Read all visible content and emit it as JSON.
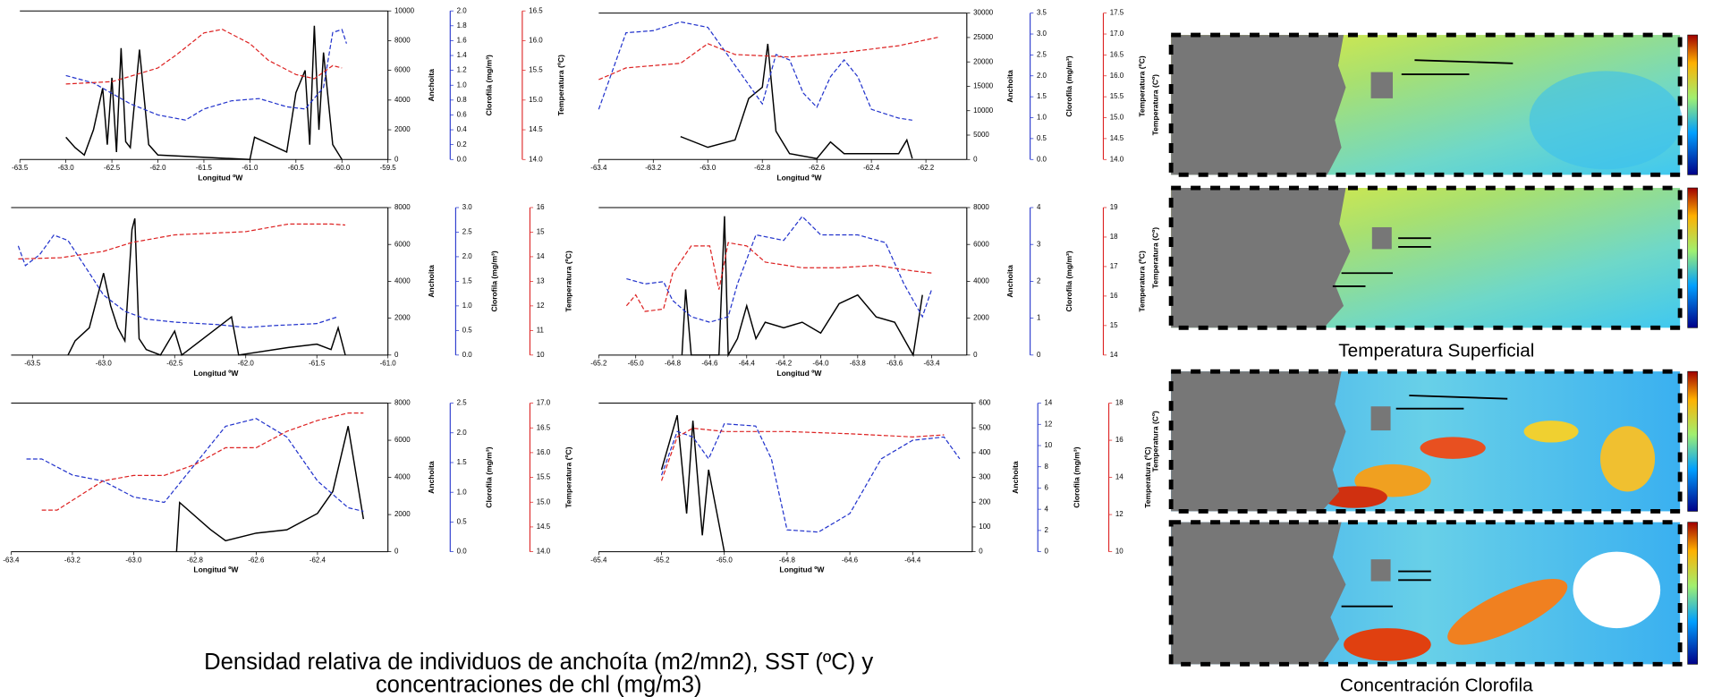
{
  "chart_data": [
    {
      "type": "line",
      "xlabel": "Longitud ºW",
      "ylabel": "Anchoita",
      "y2label": "Clorofila (mg/m³)",
      "y3label": "Temperatura (ºC)",
      "xlim": [
        -63.5,
        -59.5
      ],
      "xticks": [
        -63.5,
        {
          "value": -63,
          "label": "-63.0"
        },
        -62.5,
        {
          "value": -62,
          "label": "-62.0"
        },
        -61.5,
        {
          "value": -61,
          "label": "-61.0"
        },
        -60.5,
        {
          "value": -60,
          "label": "-60.0"
        },
        -59.5
      ],
      "ylim": [
        0,
        10000
      ],
      "yticks": [
        0,
        2000,
        4000,
        6000,
        8000,
        10000
      ],
      "y2lim": [
        0,
        2
      ],
      "y2ticks": [
        {
          "value": 0,
          "label": "0.0"
        },
        0.2,
        0.4,
        0.6,
        0.8,
        {
          "value": 1,
          "label": "1.0"
        },
        1.2,
        1.4,
        1.6,
        1.8,
        {
          "value": 2,
          "label": "2.0"
        }
      ],
      "y3lim": [
        14,
        16.5
      ],
      "y3ticks": [
        {
          "value": 14,
          "label": "14.0"
        },
        14.5,
        {
          "value": 15,
          "label": "15.0"
        },
        15.5,
        {
          "value": 16,
          "label": "16.0"
        },
        16.5
      ],
      "series": [
        {
          "color": "#000000",
          "dashed": false,
          "x": [
            -63.0,
            -62.9,
            -62.8,
            -62.7,
            -62.6,
            -62.55,
            -62.5,
            -62.45,
            -62.4,
            -62.35,
            -62.3,
            -62.2,
            -62.1,
            -62.0,
            -61.0,
            -60.95,
            -60.6,
            -60.5,
            -60.4,
            -60.35,
            -60.3,
            -60.25,
            -60.2,
            -60.1,
            -60.0
          ],
          "values": [
            1500,
            800,
            300,
            2000,
            4800,
            1000,
            5500,
            500,
            7500,
            1200,
            800,
            7400,
            1000,
            300,
            0,
            1500,
            500,
            4500,
            6000,
            1000,
            9000,
            2000,
            7200,
            1000,
            0
          ]
        },
        {
          "color": "#2233cc",
          "dashed": true,
          "axis": "y2",
          "x": [
            -63.0,
            -62.7,
            -62.3,
            -62.0,
            -61.7,
            -61.5,
            -61.2,
            -60.9,
            -60.6,
            -60.4,
            -60.2,
            -60.1,
            -60.0,
            -59.95
          ],
          "values": [
            1.13,
            1.03,
            0.75,
            0.6,
            0.53,
            0.68,
            0.79,
            0.82,
            0.71,
            0.68,
            0.97,
            1.71,
            1.75,
            1.56
          ]
        },
        {
          "color": "#dd2222",
          "dashed": true,
          "axis": "y3",
          "x": [
            -63.0,
            -62.5,
            -62.3,
            -62.0,
            -61.8,
            -61.5,
            -61.3,
            -61.0,
            -60.8,
            -60.5,
            -60.3,
            -60.1,
            -60.0
          ],
          "values": [
            15.27,
            15.31,
            15.4,
            15.54,
            15.76,
            16.13,
            16.19,
            15.95,
            15.67,
            15.43,
            15.36,
            15.58,
            15.54
          ]
        }
      ]
    },
    {
      "type": "line",
      "xlabel": "Longitud ºW",
      "ylabel": "Anchoita",
      "y2label": "Clorofila (mg/m³)",
      "y3label": "Temperatura (ºC)",
      "xlim": [
        -63.4,
        -62.05
      ],
      "xticks": [
        -63.4,
        -63.2,
        {
          "value": -63,
          "label": "-63.0"
        },
        -62.8,
        -62.6,
        -62.4,
        -62.2
      ],
      "ylim": [
        0,
        30000
      ],
      "yticks": [
        0,
        5000,
        10000,
        15000,
        20000,
        25000,
        30000
      ],
      "y2lim": [
        0,
        3.5
      ],
      "y2ticks": [
        {
          "value": 0,
          "label": "0.0"
        },
        0.5,
        {
          "value": 1,
          "label": "1.0"
        },
        1.5,
        {
          "value": 2,
          "label": "2.0"
        },
        2.5,
        {
          "value": 3,
          "label": "3.0"
        },
        3.5
      ],
      "y3lim": [
        14,
        17.5
      ],
      "y3ticks": [
        {
          "value": 14,
          "label": "14.0"
        },
        14.5,
        {
          "value": 15,
          "label": "15.0"
        },
        15.5,
        {
          "value": 16,
          "label": "16.0"
        },
        16.5,
        {
          "value": 17,
          "label": "17.0"
        },
        17.5
      ],
      "series": [
        {
          "color": "#000000",
          "dashed": false,
          "x": [
            -63.1,
            -63.0,
            -62.9,
            -62.85,
            -62.8,
            -62.78,
            -62.75,
            -62.7,
            -62.6,
            -62.55,
            -62.5,
            -62.3,
            -62.27,
            -62.25
          ],
          "values": [
            4700,
            2500,
            4000,
            12500,
            14800,
            23700,
            5800,
            1200,
            200,
            3600,
            1200,
            1200,
            4000,
            200
          ]
        },
        {
          "color": "#2233cc",
          "dashed": true,
          "axis": "y2",
          "x": [
            -63.4,
            -63.3,
            -63.2,
            -63.1,
            -63.0,
            -62.9,
            -62.8,
            -62.75,
            -62.7,
            -62.65,
            -62.6,
            -62.55,
            -62.5,
            -62.45,
            -62.4,
            -62.3,
            -62.25
          ],
          "values": [
            1.2,
            3.03,
            3.08,
            3.29,
            3.16,
            2.25,
            1.33,
            2.51,
            2.38,
            1.59,
            1.25,
            1.98,
            2.38,
            1.98,
            1.2,
            0.99,
            0.94
          ]
        },
        {
          "color": "#dd2222",
          "dashed": true,
          "axis": "y3",
          "x": [
            -63.4,
            -63.3,
            -63.1,
            -63.0,
            -62.9,
            -62.7,
            -62.5,
            -62.3,
            -62.15
          ],
          "values": [
            15.91,
            16.19,
            16.3,
            16.77,
            16.51,
            16.45,
            16.56,
            16.72,
            16.93
          ]
        }
      ]
    },
    {
      "type": "line",
      "xlabel": "Longitud ºW",
      "ylabel": "Anchoita",
      "y2label": "Clorofila (mg/m³)",
      "y3label": "Temperatura (ºC)",
      "xlim": [
        -63.65,
        -61.0
      ],
      "xticks": [
        -63.5,
        {
          "value": -63,
          "label": "-63.0"
        },
        -62.5,
        {
          "value": -62,
          "label": "-62.0"
        },
        -61.5,
        {
          "value": -61,
          "label": "-61.0"
        }
      ],
      "ylim": [
        0,
        8000
      ],
      "yticks": [
        0,
        2000,
        4000,
        6000,
        8000
      ],
      "y2lim": [
        0,
        3
      ],
      "y2ticks": [
        {
          "value": 0,
          "label": "0.0"
        },
        0.5,
        {
          "value": 1,
          "label": "1.0"
        },
        1.5,
        {
          "value": 2,
          "label": "2.0"
        },
        2.5,
        {
          "value": 3,
          "label": "3.0"
        }
      ],
      "y3lim": [
        10,
        16
      ],
      "y3ticks": [
        10,
        11,
        12,
        13,
        14,
        15,
        16
      ],
      "series": [
        {
          "color": "#000000",
          "dashed": false,
          "x": [
            -63.25,
            -63.2,
            -63.1,
            -63.0,
            -62.95,
            -62.9,
            -62.85,
            -62.8,
            -62.78,
            -62.75,
            -62.7,
            -62.6,
            -62.5,
            -62.45,
            -62.1,
            -62.05,
            -61.7,
            -61.5,
            -61.4,
            -61.35,
            -61.3
          ],
          "values": [
            0,
            770,
            1480,
            4440,
            2670,
            1480,
            770,
            6810,
            7410,
            890,
            300,
            0,
            1300,
            0,
            2070,
            0,
            410,
            590,
            300,
            1480,
            0
          ]
        },
        {
          "color": "#2233cc",
          "dashed": true,
          "axis": "y2",
          "x": [
            -63.6,
            -63.55,
            -63.45,
            -63.35,
            -63.25,
            -63.1,
            -63.0,
            -62.85,
            -62.7,
            -62.5,
            -62.2,
            -62.0,
            -61.8,
            -61.5,
            -61.35
          ],
          "values": [
            2.22,
            1.82,
            2.04,
            2.44,
            2.33,
            1.67,
            1.22,
            0.89,
            0.73,
            0.67,
            0.62,
            0.56,
            0.6,
            0.64,
            0.78
          ]
        },
        {
          "color": "#dd2222",
          "dashed": true,
          "axis": "y3",
          "x": [
            -63.6,
            -63.3,
            -63.0,
            -62.8,
            -62.5,
            -62.0,
            -61.7,
            -61.4,
            -61.3
          ],
          "values": [
            13.91,
            13.96,
            14.22,
            14.58,
            14.89,
            15.02,
            15.33,
            15.33,
            15.29
          ]
        }
      ]
    },
    {
      "type": "line",
      "xlabel": "Longitud ºW",
      "ylabel": "Anchoita",
      "y2label": "Clorofila (mg/m³)",
      "y3label": "Temperatura (ºC)",
      "xlim": [
        -65.2,
        -63.21
      ],
      "xticks": [
        -65.2,
        {
          "value": -65,
          "label": "-65.0"
        },
        -64.8,
        -64.6,
        -64.4,
        -64.2,
        {
          "value": -64,
          "label": "-64.0"
        },
        -63.8,
        -63.6,
        -63.4
      ],
      "ylim": [
        0,
        8000
      ],
      "yticks": [
        0,
        2000,
        4000,
        6000,
        8000
      ],
      "y2lim": [
        0,
        4
      ],
      "y2ticks": [
        0,
        1,
        2,
        3,
        4
      ],
      "y3lim": [
        14,
        19
      ],
      "y3ticks": [
        14,
        15,
        16,
        17,
        18,
        19
      ],
      "series": [
        {
          "color": "#000000",
          "dashed": false,
          "x": [
            -64.75,
            -64.73,
            -64.7,
            -64.55,
            -64.52,
            -64.5,
            -64.45,
            -64.4,
            -64.35,
            -64.3,
            -64.2,
            -64.1,
            -64.0,
            -63.9,
            -63.8,
            -63.7,
            -63.6,
            -63.5,
            -63.45
          ],
          "values": [
            0,
            3560,
            0,
            0,
            7530,
            0,
            890,
            2670,
            890,
            1780,
            1480,
            1780,
            1190,
            2790,
            3260,
            2070,
            1780,
            0,
            3260
          ]
        },
        {
          "color": "#2233cc",
          "dashed": true,
          "axis": "y2",
          "x": [
            -65.05,
            -64.95,
            -64.85,
            -64.8,
            -64.7,
            -64.6,
            -64.5,
            -64.45,
            -64.35,
            -64.2,
            -64.1,
            -64.0,
            -63.8,
            -63.65,
            -63.55,
            -63.45,
            -63.4
          ],
          "values": [
            2.07,
            1.93,
            1.99,
            1.48,
            1.04,
            0.89,
            1.04,
            1.93,
            3.26,
            3.11,
            3.76,
            3.26,
            3.26,
            3.05,
            1.93,
            1.04,
            1.78
          ]
        },
        {
          "color": "#dd2222",
          "dashed": true,
          "axis": "y3",
          "x": [
            -65.05,
            -65.0,
            -64.95,
            -64.85,
            -64.8,
            -64.7,
            -64.6,
            -64.55,
            -64.5,
            -64.4,
            -64.3,
            -64.1,
            -63.9,
            -63.7,
            -63.5,
            -63.4
          ],
          "values": [
            15.67,
            16.04,
            15.48,
            15.56,
            16.78,
            17.7,
            17.7,
            16.22,
            17.81,
            17.7,
            17.15,
            16.96,
            16.96,
            17.04,
            16.85,
            16.78
          ]
        }
      ]
    },
    {
      "type": "line",
      "xlabel": "Longitud ºW",
      "ylabel": "Anchoita",
      "y2label": "Clorofila (mg/m³)",
      "y3label": "Temperatura (ºC)",
      "xlim": [
        -63.4,
        -62.17
      ],
      "xticks": [
        -63.4,
        -63.2,
        {
          "value": -63,
          "label": "-63.0"
        },
        -62.8,
        -62.6,
        -62.4
      ],
      "ylim": [
        0,
        8000
      ],
      "yticks": [
        0,
        2000,
        4000,
        6000,
        8000
      ],
      "y2lim": [
        0,
        2.5
      ],
      "y2ticks": [
        {
          "value": 0,
          "label": "0.0"
        },
        0.5,
        {
          "value": 1,
          "label": "1.0"
        },
        1.5,
        {
          "value": 2,
          "label": "2.0"
        },
        2.5
      ],
      "y3lim": [
        14,
        17
      ],
      "y3ticks": [
        {
          "value": 14,
          "label": "14.0"
        },
        14.5,
        {
          "value": 15,
          "label": "15.0"
        },
        15.5,
        {
          "value": 16,
          "label": "16.0"
        },
        16.5,
        {
          "value": 17,
          "label": "17.0"
        }
      ],
      "series": [
        {
          "color": "#000000",
          "dashed": false,
          "x": [
            -62.86,
            -62.85,
            -62.75,
            -62.7,
            -62.6,
            -62.5,
            -62.4,
            -62.35,
            -62.3,
            -62.25
          ],
          "values": [
            0,
            2650,
            1200,
            590,
            1000,
            1180,
            2060,
            3240,
            6760,
            1760
          ]
        },
        {
          "color": "#2233cc",
          "dashed": true,
          "axis": "y2",
          "x": [
            -63.35,
            -63.3,
            -63.2,
            -63.1,
            -63.0,
            -62.9,
            -62.8,
            -62.7,
            -62.6,
            -62.5,
            -62.4,
            -62.3,
            -62.25
          ],
          "values": [
            1.56,
            1.56,
            1.29,
            1.19,
            0.92,
            0.83,
            1.47,
            2.11,
            2.24,
            1.93,
            1.19,
            0.74,
            0.68
          ]
        },
        {
          "color": "#dd2222",
          "dashed": true,
          "axis": "y3",
          "x": [
            -63.3,
            -63.25,
            -63.1,
            -63.0,
            -62.9,
            -62.8,
            -62.7,
            -62.6,
            -62.5,
            -62.4,
            -62.3,
            -62.25
          ],
          "values": [
            14.84,
            14.84,
            15.43,
            15.54,
            15.54,
            15.76,
            16.1,
            16.1,
            16.43,
            16.65,
            16.8,
            16.8
          ]
        }
      ]
    },
    {
      "type": "line",
      "xlabel": "Longitud ºW",
      "ylabel": "Anchoita",
      "y2label": "Clorofila (mg/m³)",
      "y3label": "Temperatura (ºC)",
      "xlim": [
        -65.4,
        -64.21
      ],
      "xticks": [
        -65.4,
        -65.2,
        {
          "value": -65,
          "label": "-65.0"
        },
        -64.8,
        -64.6,
        -64.4
      ],
      "ylim": [
        0,
        600
      ],
      "yticks": [
        0,
        100,
        200,
        300,
        400,
        500,
        600
      ],
      "y2lim": [
        0,
        14
      ],
      "y2ticks": [
        0,
        2,
        4,
        6,
        8,
        10,
        12,
        14
      ],
      "y3lim": [
        10,
        18
      ],
      "y3ticks": [
        10,
        12,
        14,
        16,
        18
      ],
      "series": [
        {
          "color": "#000000",
          "dashed": false,
          "x": [
            -65.2,
            -65.15,
            -65.12,
            -65.1,
            -65.07,
            -65.05,
            -65.0
          ],
          "values": [
            331,
            551,
            154,
            529,
            66,
            331,
            0
          ]
        },
        {
          "color": "#2233cc",
          "dashed": true,
          "axis": "y2",
          "x": [
            -65.2,
            -65.15,
            -65.1,
            -65.05,
            -65.0,
            -64.9,
            -64.85,
            -64.8,
            -64.7,
            -64.6,
            -64.5,
            -64.4,
            -64.3,
            -64.25
          ],
          "values": [
            7.21,
            11.33,
            10.81,
            8.75,
            12.05,
            11.84,
            8.75,
            2.06,
            1.85,
            3.6,
            8.75,
            10.5,
            10.81,
            8.75
          ]
        },
        {
          "color": "#dd2222",
          "dashed": true,
          "axis": "y3",
          "x": [
            -65.2,
            -65.15,
            -65.1,
            -65.0,
            -64.8,
            -64.6,
            -64.4,
            -64.3
          ],
          "values": [
            13.82,
            16.18,
            16.65,
            16.47,
            16.47,
            16.35,
            16.18,
            16.29
          ]
        }
      ]
    }
  ],
  "figure_caption": [
    "Densidad relativa de individuos de  anchoíta (m2/mn2), SST (ºC) y",
    "concentraciones de chl (mg/m3)"
  ],
  "map_ylabels": [
    "Temperatura (Cº)",
    "Temperatura (Cº)",
    "Temperatura (Cº)"
  ],
  "map_captions": [
    "Temperatura Superficial",
    "Concentración Clorofila"
  ]
}
